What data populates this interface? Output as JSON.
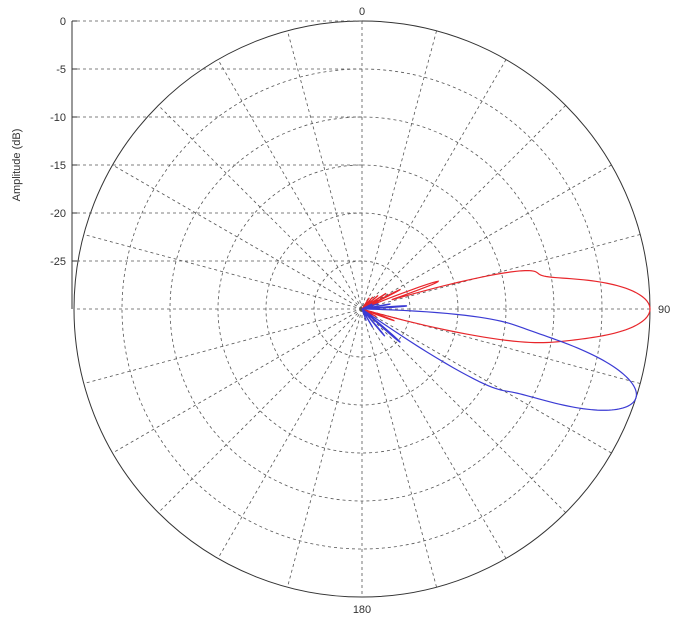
{
  "chart_data": {
    "type": "line",
    "coordinate_system": "polar",
    "title": "",
    "ylabel": "Amplitude (dB)",
    "r_range": [
      -30,
      0
    ],
    "r_ticks": [
      "0",
      "-5",
      "-10",
      "-15",
      "-20",
      "-25"
    ],
    "r_tick_values": [
      0,
      -5,
      -10,
      -15,
      -20,
      -25
    ],
    "angle_labels": [
      {
        "angle": 0,
        "label": "0"
      },
      {
        "angle": 90,
        "label": "90"
      },
      {
        "angle": 180,
        "label": "180"
      }
    ],
    "angle_grid_step_deg": 15,
    "grid": true,
    "series": [
      {
        "color": "#e8262b",
        "main_lobe_deg": 90,
        "lobes": [
          {
            "angle": 90,
            "amplitude_db": 0,
            "half_width_deg": 6
          },
          {
            "angle": 77,
            "amplitude_db": -16.5,
            "half_width_deg": 2
          },
          {
            "angle": 70,
            "amplitude_db": -22,
            "half_width_deg": 1.5
          },
          {
            "angle": 63,
            "amplitude_db": -25.5,
            "half_width_deg": 1.3
          },
          {
            "angle": 57,
            "amplitude_db": -27,
            "half_width_deg": 1.2
          },
          {
            "angle": 50,
            "amplitude_db": -27.8,
            "half_width_deg": 1.2
          },
          {
            "angle": 42,
            "amplitude_db": -28.3,
            "half_width_deg": 1.2
          },
          {
            "angle": 33,
            "amplitude_db": -28.6,
            "half_width_deg": 1.2
          },
          {
            "angle": 101,
            "amplitude_db": -22.5,
            "half_width_deg": 2
          },
          {
            "angle": 110,
            "amplitude_db": -27.2,
            "half_width_deg": 1.5
          },
          {
            "angle": 118,
            "amplitude_db": -28.3,
            "half_width_deg": 1.3
          },
          {
            "angle": 125,
            "amplitude_db": -28.8,
            "half_width_deg": 1.2
          }
        ]
      },
      {
        "color": "#3b3bd4",
        "main_lobe_deg": 108,
        "lobes": [
          {
            "angle": 108,
            "amplitude_db": 0,
            "half_width_deg": 6
          },
          {
            "angle": 95,
            "amplitude_db": -22.8,
            "half_width_deg": 2
          },
          {
            "angle": 86,
            "amplitude_db": -25.5,
            "half_width_deg": 1.5
          },
          {
            "angle": 80,
            "amplitude_db": -27,
            "half_width_deg": 1.3
          },
          {
            "angle": 72,
            "amplitude_db": -28.2,
            "half_width_deg": 1.2
          },
          {
            "angle": 64,
            "amplitude_db": -28.8,
            "half_width_deg": 1.2
          },
          {
            "angle": 121,
            "amplitude_db": -20,
            "half_width_deg": 2
          },
          {
            "angle": 131,
            "amplitude_db": -24.8,
            "half_width_deg": 1.5
          },
          {
            "angle": 140,
            "amplitude_db": -26.3,
            "half_width_deg": 1.3
          },
          {
            "angle": 150,
            "amplitude_db": -27.8,
            "half_width_deg": 1.2
          },
          {
            "angle": 160,
            "amplitude_db": -28.7,
            "half_width_deg": 1.2
          }
        ]
      }
    ]
  }
}
